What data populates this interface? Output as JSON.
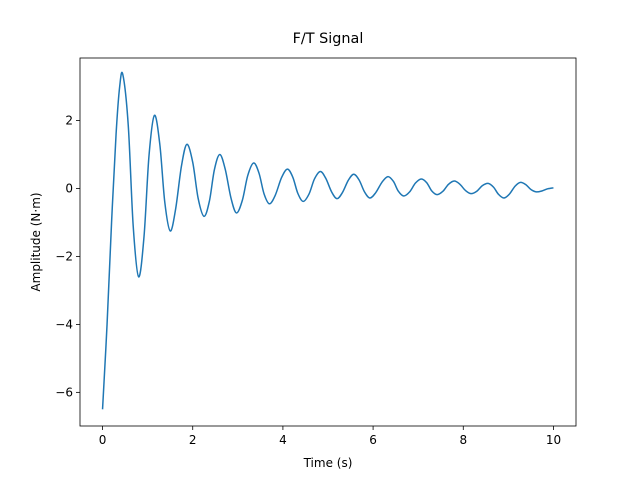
{
  "chart_data": {
    "type": "line",
    "title": "F/T Signal",
    "x_label": "Time (s)",
    "y_label": "Amplitude (N·m)",
    "xlim": [
      -0.5,
      10.5
    ],
    "ylim": [
      -6.99,
      3.84
    ],
    "xticks": [
      0,
      2,
      4,
      6,
      8,
      10
    ],
    "yticks": [
      {
        "value": -6,
        "label": "−6"
      },
      {
        "value": -4,
        "label": "−4"
      },
      {
        "value": -2,
        "label": "−2"
      },
      0,
      2
    ],
    "grid": false,
    "x": [
      0,
      0.1,
      0.2,
      0.3,
      0.38,
      0.45,
      0.57,
      0.68,
      0.8,
      0.92,
      1.03,
      1.15,
      1.27,
      1.38,
      1.5,
      1.62,
      1.75,
      1.87,
      2.0,
      2.12,
      2.25,
      2.37,
      2.48,
      2.6,
      2.72,
      2.85,
      2.97,
      3.1,
      3.22,
      3.35,
      3.47,
      3.58,
      3.7,
      3.83,
      3.97,
      4.1,
      4.22,
      4.33,
      4.45,
      4.58,
      4.7,
      4.83,
      4.95,
      5.08,
      5.2,
      5.32,
      5.45,
      5.57,
      5.69,
      5.81,
      5.93,
      6.06,
      6.2,
      6.33,
      6.45,
      6.56,
      6.68,
      6.81,
      6.94,
      7.07,
      7.19,
      7.3,
      7.42,
      7.55,
      7.67,
      7.8,
      7.92,
      8.05,
      8.17,
      8.3,
      8.42,
      8.55,
      8.67,
      8.78,
      8.9,
      9.02,
      9.15,
      9.27,
      9.39,
      9.5,
      9.62,
      9.75,
      9.87,
      10
    ],
    "series": [
      {
        "color": "#1f77b4",
        "values": [
          -6.5,
          -4.0,
          -1.0,
          1.6,
          3.0,
          3.35,
          1.86,
          -1.11,
          -2.6,
          -1.41,
          0.96,
          2.15,
          1.3,
          -0.4,
          -1.25,
          -0.61,
          0.66,
          1.3,
          0.77,
          -0.29,
          -0.82,
          -0.37,
          0.55,
          1.0,
          0.57,
          -0.29,
          -0.72,
          -0.35,
          0.38,
          0.75,
          0.45,
          -0.15,
          -0.45,
          -0.2,
          0.32,
          0.57,
          0.33,
          -0.14,
          -0.38,
          -0.16,
          0.28,
          0.5,
          0.3,
          -0.1,
          -0.3,
          -0.12,
          0.24,
          0.42,
          0.25,
          -0.1,
          -0.28,
          -0.12,
          0.19,
          0.35,
          0.21,
          -0.08,
          -0.22,
          -0.1,
          0.16,
          0.28,
          0.17,
          -0.07,
          -0.18,
          -0.08,
          0.12,
          0.22,
          0.13,
          -0.06,
          -0.15,
          -0.08,
          0.08,
          0.15,
          0.04,
          -0.17,
          -0.28,
          -0.17,
          0.07,
          0.18,
          0.11,
          -0.03,
          -0.1,
          -0.07,
          -0.01,
          0.02
        ]
      }
    ]
  }
}
